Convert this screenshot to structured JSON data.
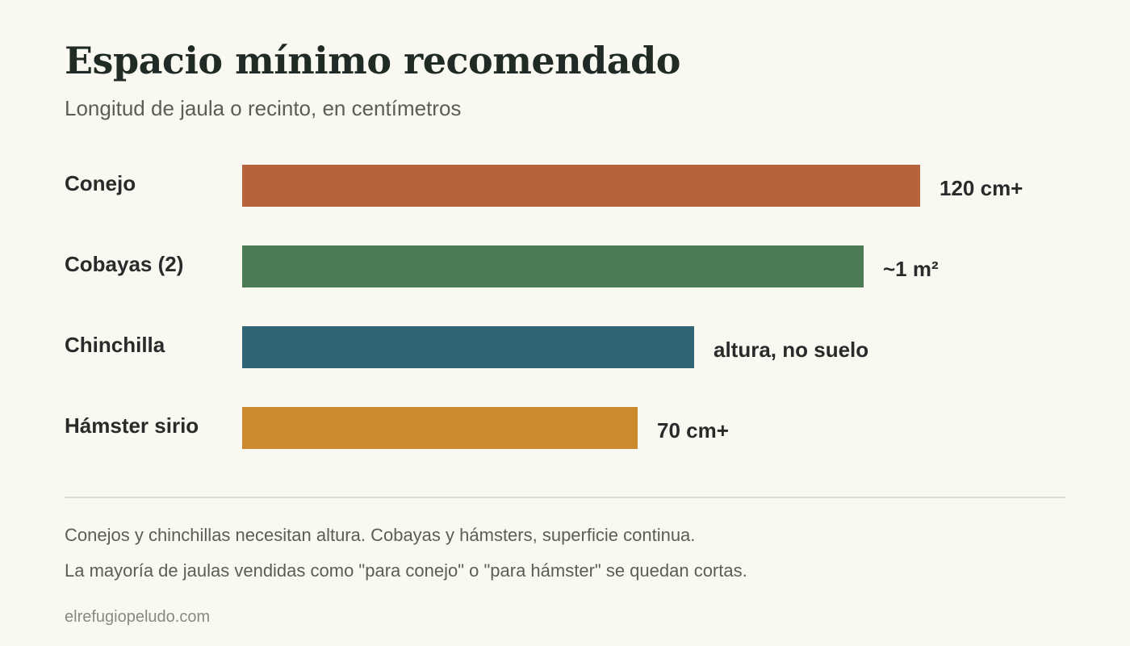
{
  "chart_data": {
    "type": "bar",
    "orientation": "horizontal",
    "title": "Espacio mínimo recomendado",
    "subtitle": "Longitud de jaula o recinto, en centímetros",
    "categories": [
      "Conejo",
      "Cobayas (2)",
      "Chinchilla",
      "Hámster sirio"
    ],
    "values": [
      120,
      110,
      80,
      70
    ],
    "value_labels": [
      "120 cm+",
      "~1 m²",
      "altura, no suelo",
      "70 cm+"
    ],
    "colors": [
      "#b5633b",
      "#4c7c55",
      "#2f6472",
      "#cb8a2d"
    ],
    "xlim": [
      0,
      120
    ],
    "grid": false,
    "legend": "none"
  },
  "footnotes": [
    "Conejos y chinchillas necesitan altura. Cobayas y hámsters, superficie continua.",
    "La mayoría de jaulas vendidas como \"para conejo\" o \"para hámster\" se quedan cortas."
  ],
  "source": "elrefugiopeludo.com"
}
